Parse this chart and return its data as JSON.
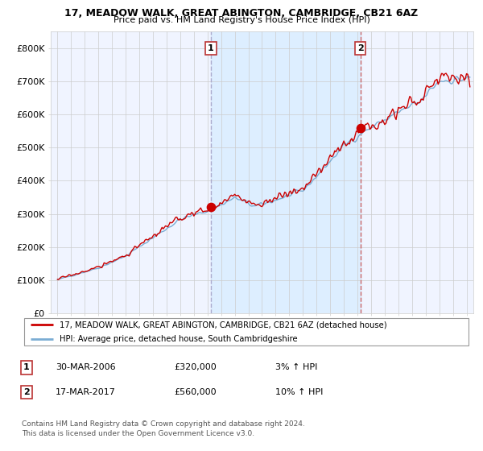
{
  "title1": "17, MEADOW WALK, GREAT ABINGTON, CAMBRIDGE, CB21 6AZ",
  "title2": "Price paid vs. HM Land Registry's House Price Index (HPI)",
  "ylabel_ticks": [
    "£0",
    "£100K",
    "£200K",
    "£300K",
    "£400K",
    "£500K",
    "£600K",
    "£700K",
    "£800K"
  ],
  "ytick_vals": [
    0,
    100000,
    200000,
    300000,
    400000,
    500000,
    600000,
    700000,
    800000
  ],
  "ylim": [
    0,
    850000
  ],
  "xlim_start": 1994.5,
  "xlim_end": 2025.5,
  "sale1_date": 2006.247,
  "sale1_price": 320000,
  "sale2_date": 2017.214,
  "sale2_price": 560000,
  "red_color": "#cc0000",
  "blue_color": "#7aadd4",
  "shade_color": "#ddeeff",
  "grid_color": "#cccccc",
  "bg_color": "#f0f4ff",
  "legend1": "17, MEADOW WALK, GREAT ABINGTON, CAMBRIDGE, CB21 6AZ (detached house)",
  "legend2": "HPI: Average price, detached house, South Cambridgeshire",
  "ann1_date": "30-MAR-2006",
  "ann1_price": "£320,000",
  "ann1_hpi": "3% ↑ HPI",
  "ann2_date": "17-MAR-2017",
  "ann2_price": "£560,000",
  "ann2_hpi": "10% ↑ HPI",
  "footer": "Contains HM Land Registry data © Crown copyright and database right 2024.\nThis data is licensed under the Open Government Licence v3.0."
}
